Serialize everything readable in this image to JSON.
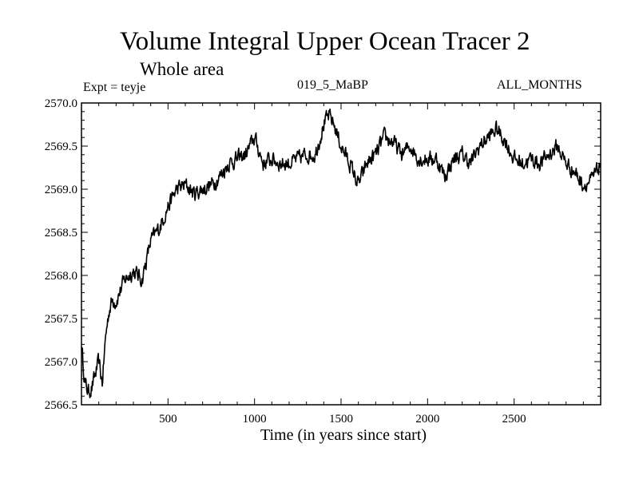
{
  "header": {
    "title": "Volume Integral Upper Ocean Tracer 2",
    "subtitle": "Whole area",
    "experiment": "Expt = teyje",
    "period": "019_5_MaBP",
    "months": "ALL_MONTHS"
  },
  "chart_data": {
    "type": "line",
    "title": "Volume Integral Upper Ocean Tracer 2",
    "subtitle": "Whole area",
    "xlabel": "Time (in years since start)",
    "ylabel": "",
    "xlim": [
      0,
      3000
    ],
    "ylim": [
      2566.5,
      2570.0
    ],
    "x_ticks": [
      500,
      1000,
      1500,
      2000,
      2500
    ],
    "y_ticks": [
      2566.5,
      2567.0,
      2567.5,
      2568.0,
      2568.5,
      2569.0,
      2569.5,
      2570.0
    ],
    "y_tick_labels": [
      "2566.5",
      "2567.0",
      "2567.5",
      "2568.0",
      "2568.5",
      "2569.0",
      "2569.5",
      "2570.0"
    ],
    "grid": false,
    "series": [
      {
        "name": "Tracer 2",
        "color": "#000000",
        "x": [
          0,
          20,
          40,
          60,
          80,
          100,
          120,
          140,
          160,
          180,
          200,
          250,
          300,
          350,
          400,
          450,
          500,
          550,
          600,
          650,
          700,
          750,
          800,
          850,
          900,
          950,
          1000,
          1050,
          1100,
          1150,
          1200,
          1250,
          1300,
          1350,
          1400,
          1430,
          1460,
          1500,
          1550,
          1600,
          1650,
          1700,
          1750,
          1800,
          1850,
          1900,
          1950,
          2000,
          2050,
          2100,
          2150,
          2200,
          2250,
          2300,
          2350,
          2400,
          2450,
          2500,
          2550,
          2600,
          2650,
          2700,
          2750,
          2800,
          2850,
          2900,
          2950,
          3000
        ],
        "y": [
          2567.2,
          2566.75,
          2566.65,
          2566.7,
          2566.85,
          2567.0,
          2566.75,
          2567.3,
          2567.6,
          2567.72,
          2567.7,
          2567.95,
          2568.05,
          2567.95,
          2568.4,
          2568.55,
          2568.8,
          2569.0,
          2569.05,
          2568.95,
          2569.0,
          2569.05,
          2569.15,
          2569.3,
          2569.35,
          2569.4,
          2569.6,
          2569.3,
          2569.35,
          2569.3,
          2569.3,
          2569.35,
          2569.4,
          2569.4,
          2569.75,
          2569.85,
          2569.75,
          2569.5,
          2569.3,
          2569.05,
          2569.3,
          2569.4,
          2569.6,
          2569.55,
          2569.4,
          2569.5,
          2569.35,
          2569.35,
          2569.35,
          2569.15,
          2569.35,
          2569.4,
          2569.3,
          2569.5,
          2569.6,
          2569.7,
          2569.55,
          2569.35,
          2569.3,
          2569.35,
          2569.3,
          2569.4,
          2569.5,
          2569.3,
          2569.2,
          2569.05,
          2569.1,
          2569.3
        ]
      }
    ]
  },
  "colors": {
    "line": "#000000",
    "background": "#ffffff",
    "axes": "#000000"
  }
}
